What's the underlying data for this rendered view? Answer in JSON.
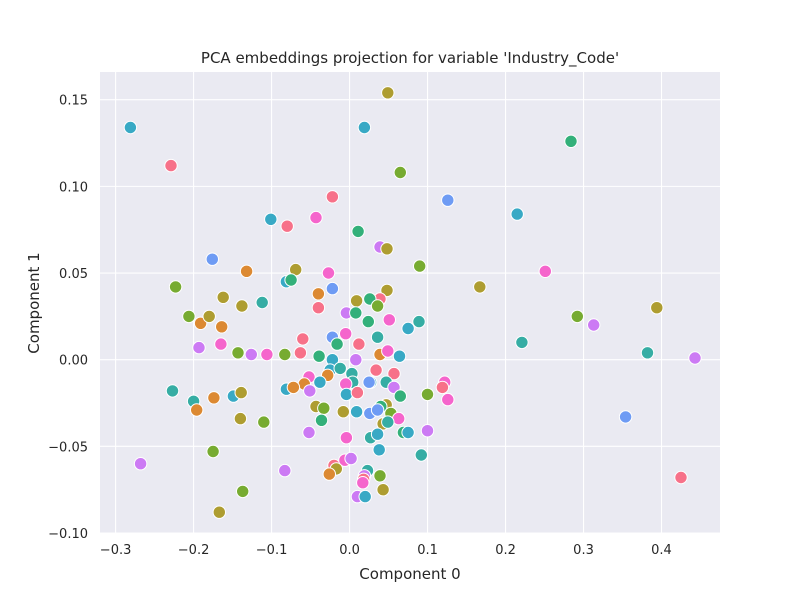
{
  "chart_data": {
    "type": "scatter",
    "title": "PCA embeddings projection for variable 'Industry_Code'",
    "xlabel": "Component 0",
    "ylabel": "Component 1",
    "xlim": [
      -0.32,
      0.475
    ],
    "ylim": [
      -0.1,
      0.166
    ],
    "xticks": [
      -0.3,
      -0.2,
      -0.1,
      0.0,
      0.1,
      0.2,
      0.3,
      0.4
    ],
    "xtick_labels": [
      "−0.3",
      "−0.2",
      "−0.1",
      "0.0",
      "0.1",
      "0.2",
      "0.3",
      "0.4"
    ],
    "yticks": [
      -0.1,
      -0.05,
      0.0,
      0.05,
      0.1,
      0.15
    ],
    "ytick_labels": [
      "−0.10",
      "−0.05",
      "0.00",
      "0.05",
      "0.10",
      "0.15"
    ],
    "grid": true,
    "background": "#eaeaf2",
    "palette": [
      "#f77189",
      "#dc8932",
      "#ae9d31",
      "#77ab31",
      "#33b07a",
      "#36ada4",
      "#38a9c5",
      "#6e9bf4",
      "#cc7af4",
      "#f565cc"
    ],
    "points": [
      [
        -0.281,
        0.134,
        6
      ],
      [
        -0.229,
        0.112,
        0
      ],
      [
        0.049,
        0.154,
        2
      ],
      [
        0.019,
        0.134,
        6
      ],
      [
        0.284,
        0.126,
        4
      ],
      [
        0.065,
        0.108,
        3
      ],
      [
        -0.022,
        0.094,
        0
      ],
      [
        0.126,
        0.092,
        7
      ],
      [
        0.215,
        0.084,
        6
      ],
      [
        -0.101,
        0.081,
        6
      ],
      [
        -0.043,
        0.082,
        9
      ],
      [
        -0.08,
        0.077,
        0
      ],
      [
        0.011,
        0.074,
        4
      ],
      [
        0.039,
        0.065,
        8
      ],
      [
        0.048,
        0.064,
        2
      ],
      [
        -0.176,
        0.058,
        7
      ],
      [
        -0.132,
        0.051,
        1
      ],
      [
        -0.069,
        0.052,
        2
      ],
      [
        -0.027,
        0.05,
        9
      ],
      [
        0.09,
        0.054,
        3
      ],
      [
        0.251,
        0.051,
        9
      ],
      [
        -0.223,
        0.042,
        3
      ],
      [
        -0.081,
        0.045,
        6
      ],
      [
        -0.075,
        0.046,
        4
      ],
      [
        -0.04,
        0.038,
        1
      ],
      [
        -0.022,
        0.041,
        7
      ],
      [
        0.167,
        0.042,
        2
      ],
      [
        0.048,
        0.04,
        2
      ],
      [
        -0.162,
        0.036,
        2
      ],
      [
        -0.138,
        0.031,
        2
      ],
      [
        -0.112,
        0.033,
        5
      ],
      [
        0.009,
        0.034,
        2
      ],
      [
        0.039,
        0.035,
        0
      ],
      [
        0.026,
        0.035,
        4
      ],
      [
        0.036,
        0.031,
        3
      ],
      [
        -0.04,
        0.03,
        0
      ],
      [
        -0.206,
        0.025,
        3
      ],
      [
        -0.191,
        0.021,
        1
      ],
      [
        -0.18,
        0.025,
        2
      ],
      [
        -0.164,
        0.019,
        1
      ],
      [
        -0.004,
        0.027,
        8
      ],
      [
        0.008,
        0.027,
        4
      ],
      [
        0.024,
        0.022,
        4
      ],
      [
        0.051,
        0.023,
        9
      ],
      [
        0.292,
        0.025,
        3
      ],
      [
        0.394,
        0.03,
        2
      ],
      [
        0.313,
        0.02,
        8
      ],
      [
        0.089,
        0.022,
        5
      ],
      [
        0.075,
        0.018,
        6
      ],
      [
        -0.005,
        0.015,
        9
      ],
      [
        -0.022,
        0.013,
        7
      ],
      [
        -0.016,
        0.009,
        4
      ],
      [
        0.012,
        0.009,
        0
      ],
      [
        0.036,
        0.013,
        5
      ],
      [
        -0.193,
        0.007,
        8
      ],
      [
        -0.165,
        0.009,
        9
      ],
      [
        -0.143,
        0.004,
        3
      ],
      [
        -0.126,
        0.003,
        8
      ],
      [
        -0.106,
        0.003,
        9
      ],
      [
        -0.083,
        0.003,
        3
      ],
      [
        -0.06,
        0.012,
        0
      ],
      [
        -0.063,
        0.004,
        0
      ],
      [
        -0.039,
        0.002,
        4
      ],
      [
        0.008,
        0.0,
        8
      ],
      [
        0.039,
        0.003,
        1
      ],
      [
        0.049,
        0.005,
        9
      ],
      [
        0.064,
        0.002,
        6
      ],
      [
        0.221,
        0.01,
        5
      ],
      [
        0.382,
        0.004,
        5
      ],
      [
        0.443,
        0.001,
        8
      ],
      [
        -0.022,
        0.0,
        6
      ],
      [
        -0.025,
        -0.006,
        6
      ],
      [
        -0.012,
        -0.005,
        5
      ],
      [
        -0.028,
        -0.009,
        1
      ],
      [
        0.003,
        -0.008,
        5
      ],
      [
        0.034,
        -0.006,
        0
      ],
      [
        0.057,
        -0.008,
        0
      ],
      [
        0.004,
        -0.013,
        5
      ],
      [
        0.027,
        -0.013,
        6
      ],
      [
        0.047,
        -0.013,
        5
      ],
      [
        -0.052,
        -0.01,
        9
      ],
      [
        -0.058,
        -0.014,
        1
      ],
      [
        -0.038,
        -0.013,
        6
      ],
      [
        -0.005,
        -0.014,
        9
      ],
      [
        0.025,
        -0.013,
        7
      ],
      [
        -0.227,
        -0.018,
        5
      ],
      [
        -0.2,
        -0.024,
        5
      ],
      [
        -0.196,
        -0.029,
        1
      ],
      [
        -0.174,
        -0.022,
        1
      ],
      [
        -0.149,
        -0.021,
        6
      ],
      [
        -0.139,
        -0.019,
        2
      ],
      [
        -0.081,
        -0.017,
        6
      ],
      [
        -0.072,
        -0.016,
        1
      ],
      [
        -0.051,
        -0.018,
        8
      ],
      [
        -0.043,
        -0.027,
        2
      ],
      [
        -0.033,
        -0.028,
        3
      ],
      [
        -0.004,
        -0.02,
        6
      ],
      [
        0.01,
        -0.019,
        0
      ],
      [
        0.057,
        -0.016,
        8
      ],
      [
        0.065,
        -0.021,
        4
      ],
      [
        0.1,
        -0.02,
        3
      ],
      [
        0.122,
        -0.013,
        9
      ],
      [
        0.119,
        -0.016,
        0
      ],
      [
        0.126,
        -0.023,
        9
      ],
      [
        0.047,
        -0.026,
        2
      ],
      [
        0.04,
        -0.027,
        4
      ],
      [
        -0.008,
        -0.03,
        2
      ],
      [
        0.009,
        -0.03,
        6
      ],
      [
        0.026,
        -0.031,
        7
      ],
      [
        0.036,
        -0.029,
        7
      ],
      [
        0.053,
        -0.031,
        3
      ],
      [
        0.063,
        -0.034,
        9
      ],
      [
        -0.14,
        -0.034,
        2
      ],
      [
        -0.11,
        -0.036,
        3
      ],
      [
        -0.036,
        -0.035,
        4
      ],
      [
        0.043,
        -0.037,
        2
      ],
      [
        0.049,
        -0.036,
        5
      ],
      [
        0.069,
        -0.042,
        4
      ],
      [
        0.075,
        -0.042,
        6
      ],
      [
        0.1,
        -0.041,
        8
      ],
      [
        -0.052,
        -0.042,
        8
      ],
      [
        -0.004,
        -0.045,
        9
      ],
      [
        0.027,
        -0.045,
        5
      ],
      [
        0.036,
        -0.043,
        6
      ],
      [
        0.038,
        -0.052,
        6
      ],
      [
        0.092,
        -0.055,
        5
      ],
      [
        0.354,
        -0.033,
        7
      ],
      [
        -0.175,
        -0.053,
        3
      ],
      [
        -0.268,
        -0.06,
        8
      ],
      [
        -0.083,
        -0.064,
        8
      ],
      [
        -0.02,
        -0.061,
        0
      ],
      [
        -0.006,
        -0.058,
        9
      ],
      [
        -0.017,
        -0.063,
        2
      ],
      [
        0.002,
        -0.057,
        8
      ],
      [
        -0.026,
        -0.066,
        1
      ],
      [
        0.023,
        -0.064,
        5
      ],
      [
        0.019,
        -0.067,
        8
      ],
      [
        0.018,
        -0.069,
        0
      ],
      [
        0.039,
        -0.067,
        3
      ],
      [
        0.425,
        -0.068,
        0
      ],
      [
        -0.137,
        -0.076,
        3
      ],
      [
        0.017,
        -0.071,
        9
      ],
      [
        0.01,
        -0.079,
        8
      ],
      [
        0.02,
        -0.079,
        6
      ],
      [
        0.043,
        -0.075,
        2
      ],
      [
        -0.167,
        -0.088,
        2
      ]
    ]
  }
}
